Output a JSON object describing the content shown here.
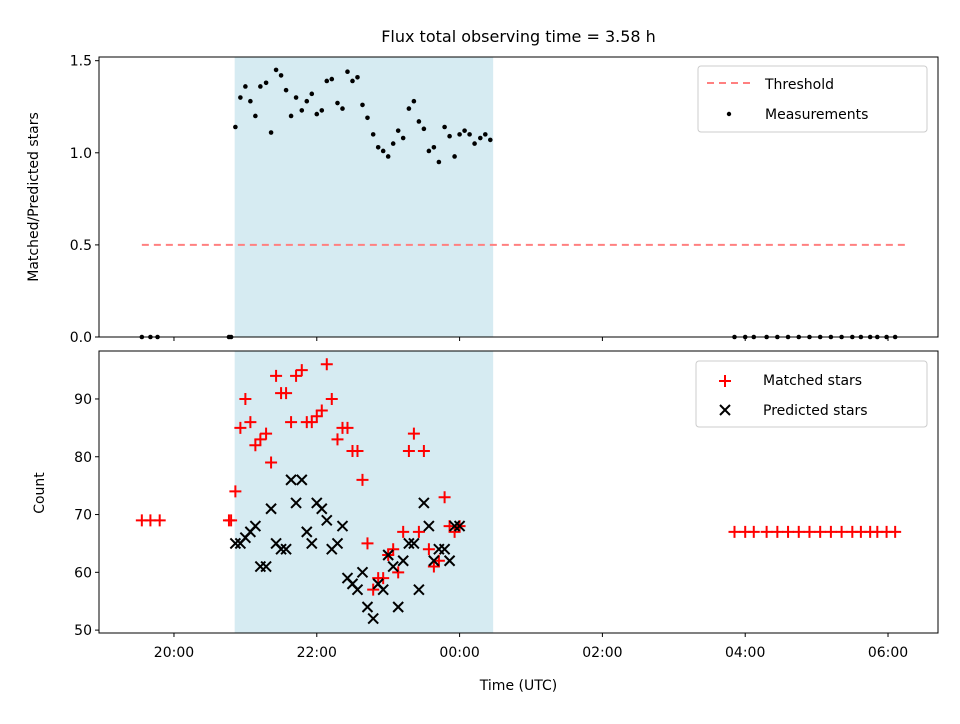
{
  "chart_data": {
    "title": "Flux total observing time = 3.58 h",
    "xlabel": "Time (UTC)",
    "x_unit": "time of day (UTC), values after midnight are shown as hours > 24",
    "xlim": [
      18.95,
      30.7
    ],
    "xticks": [
      20,
      22,
      24,
      26,
      28,
      30
    ],
    "xtick_labels": [
      "20:00",
      "22:00",
      "00:00",
      "02:00",
      "04:00",
      "06:00"
    ],
    "shaded_span": [
      20.85,
      24.47
    ],
    "colors": {
      "threshold": "#ff8080",
      "measurements": "#000000",
      "matched": "#ff0000",
      "predicted": "#000000",
      "shade": "#add8e6"
    },
    "panels": [
      {
        "type": "scatter",
        "ylabel": "Matched/Predicted stars",
        "ylim": [
          0,
          1.52
        ],
        "yticks": [
          0.0,
          0.5,
          1.0,
          1.5
        ],
        "ytick_labels": [
          "0.0",
          "0.5",
          "1.0",
          "1.5"
        ],
        "legend_position": "top-right",
        "threshold": {
          "name": "Threshold",
          "x": [
            19.55,
            30.3
          ],
          "y": 0.5
        },
        "measurements": {
          "name": "Measurements",
          "x": [
            19.55,
            19.67,
            19.77,
            20.77,
            20.8,
            20.86,
            20.93,
            21.0,
            21.07,
            21.14,
            21.21,
            21.29,
            21.36,
            21.43,
            21.5,
            21.57,
            21.64,
            21.71,
            21.79,
            21.86,
            21.93,
            22.0,
            22.07,
            22.14,
            22.21,
            22.29,
            22.36,
            22.43,
            22.5,
            22.57,
            22.64,
            22.71,
            22.79,
            22.86,
            22.93,
            23.0,
            23.07,
            23.14,
            23.21,
            23.29,
            23.36,
            23.43,
            23.5,
            23.57,
            23.64,
            23.71,
            23.79,
            23.86,
            23.93,
            24.0,
            24.07,
            24.14,
            24.21,
            24.29,
            24.36,
            24.43,
            27.85,
            28.0,
            28.12,
            28.3,
            28.45,
            28.6,
            28.75,
            28.9,
            29.05,
            29.2,
            29.35,
            29.5,
            29.62,
            29.75,
            29.85,
            29.98,
            30.1
          ],
          "y": [
            0.0,
            0.0,
            0.0,
            0.0,
            0.0,
            1.14,
            1.3,
            1.36,
            1.28,
            1.2,
            1.36,
            1.38,
            1.11,
            1.45,
            1.42,
            1.34,
            1.2,
            1.3,
            1.23,
            1.28,
            1.32,
            1.21,
            1.23,
            1.39,
            1.4,
            1.27,
            1.24,
            1.44,
            1.39,
            1.41,
            1.26,
            1.19,
            1.1,
            1.03,
            1.01,
            0.98,
            1.05,
            1.12,
            1.08,
            1.24,
            1.28,
            1.17,
            1.13,
            1.01,
            1.03,
            0.95,
            1.14,
            1.09,
            0.98,
            1.1,
            1.12,
            1.1,
            1.05,
            1.08,
            1.1,
            1.07,
            0.0,
            0.0,
            0.0,
            0.0,
            0.0,
            0.0,
            0.0,
            0.0,
            0.0,
            0.0,
            0.0,
            0.0,
            0.0,
            0.0,
            0.0,
            0.0,
            0.0
          ]
        }
      },
      {
        "type": "scatter",
        "ylabel": "Count",
        "ylim": [
          49.5,
          98.3
        ],
        "yticks": [
          50,
          60,
          70,
          80,
          90
        ],
        "ytick_labels": [
          "50",
          "60",
          "70",
          "80",
          "90"
        ],
        "legend_position": "top-right",
        "series": [
          {
            "name": "Matched stars",
            "marker": "plus",
            "x": [
              19.55,
              19.67,
              19.8,
              20.77,
              20.8,
              20.86,
              20.93,
              21.0,
              21.07,
              21.14,
              21.21,
              21.29,
              21.36,
              21.43,
              21.5,
              21.57,
              21.64,
              21.71,
              21.79,
              21.86,
              21.93,
              22.0,
              22.07,
              22.14,
              22.21,
              22.29,
              22.36,
              22.43,
              22.5,
              22.57,
              22.64,
              22.71,
              22.79,
              22.86,
              22.93,
              23.0,
              23.07,
              23.14,
              23.21,
              23.29,
              23.36,
              23.43,
              23.5,
              23.57,
              23.64,
              23.71,
              23.79,
              23.86,
              23.93,
              24.0,
              27.85,
              28.0,
              28.12,
              28.3,
              28.45,
              28.6,
              28.75,
              28.9,
              29.05,
              29.2,
              29.35,
              29.5,
              29.62,
              29.75,
              29.85,
              29.98,
              30.1
            ],
            "y": [
              69,
              69,
              69,
              69,
              69,
              74,
              85,
              90,
              86,
              82,
              83,
              84,
              79,
              94,
              91,
              91,
              86,
              94,
              95,
              86,
              86,
              87,
              88,
              96,
              90,
              83,
              85,
              85,
              81,
              81,
              76,
              65,
              57,
              59,
              59,
              63,
              64,
              60,
              67,
              81,
              84,
              67,
              81,
              64,
              61,
              62,
              73,
              68,
              67,
              68,
              67,
              67,
              67,
              67,
              67,
              67,
              67,
              67,
              67,
              67,
              67,
              67,
              67,
              67,
              67,
              67,
              67
            ]
          },
          {
            "name": "Predicted stars",
            "marker": "x",
            "x": [
              20.86,
              20.93,
              21.0,
              21.07,
              21.14,
              21.21,
              21.29,
              21.36,
              21.43,
              21.5,
              21.57,
              21.64,
              21.71,
              21.79,
              21.86,
              21.93,
              22.0,
              22.07,
              22.14,
              22.21,
              22.29,
              22.36,
              22.43,
              22.5,
              22.57,
              22.64,
              22.71,
              22.79,
              22.86,
              22.93,
              23.0,
              23.07,
              23.14,
              23.21,
              23.29,
              23.36,
              23.43,
              23.5,
              23.57,
              23.64,
              23.71,
              23.79,
              23.86,
              23.93,
              24.0
            ],
            "y": [
              65,
              65,
              66,
              67,
              68,
              61,
              61,
              71,
              65,
              64,
              64,
              76,
              72,
              76,
              67,
              65,
              72,
              71,
              69,
              64,
              65,
              68,
              59,
              58,
              57,
              60,
              54,
              52,
              58,
              57,
              63,
              61,
              54,
              62,
              65,
              65,
              57,
              72,
              68,
              62,
              64,
              64,
              62,
              68,
              68
            ]
          }
        ]
      }
    ]
  }
}
